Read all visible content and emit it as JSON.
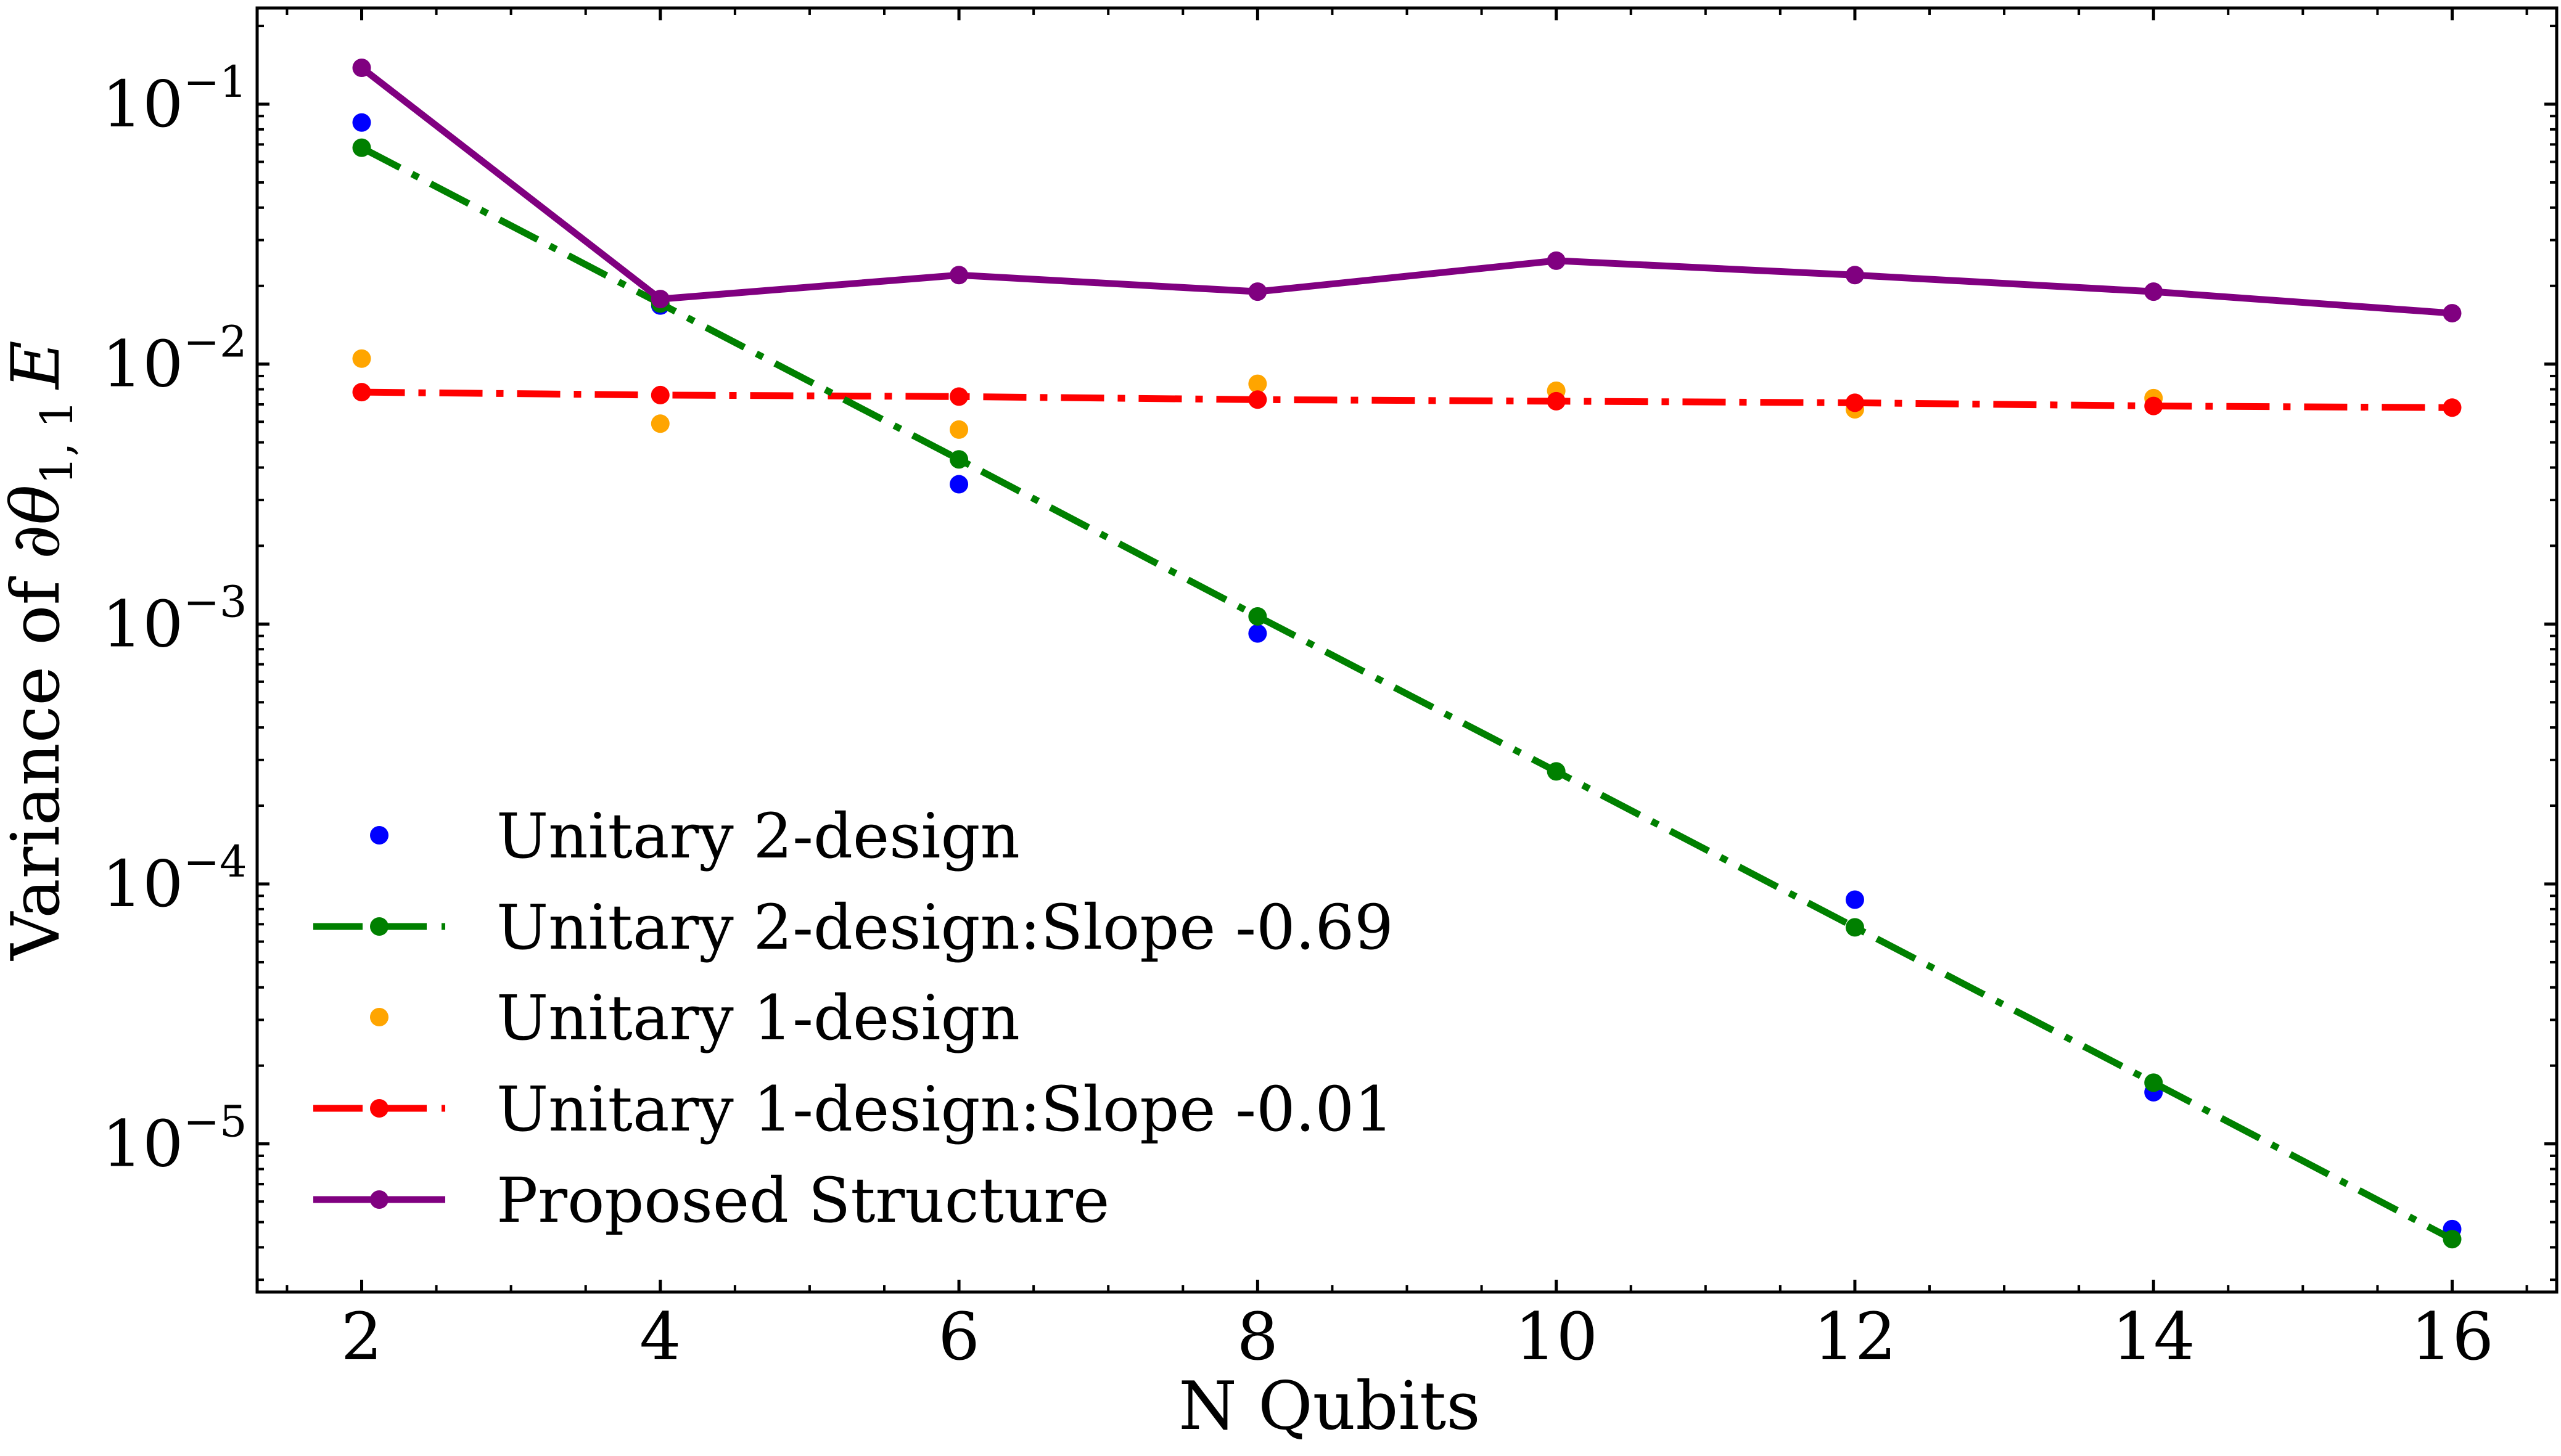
{
  "chart_data": {
    "type": "line",
    "title": "",
    "xlabel": "N Qubits",
    "ylabel_prefix": "Variance of ",
    "ylabel_symbol": "∂θ",
    "ylabel_subscript": "1, 1",
    "ylabel_suffix": "E",
    "yscale": "log",
    "xlim": [
      1.3,
      16.7
    ],
    "ylim_log10": [
      -5.57,
      -0.63
    ],
    "x_ticks": [
      2,
      4,
      6,
      8,
      10,
      12,
      14,
      16
    ],
    "x_tick_labels": [
      "2",
      "4",
      "6",
      "8",
      "10",
      "12",
      "14",
      "16"
    ],
    "y_tick_exponents": [
      -1,
      -2,
      -3,
      -4,
      -5
    ],
    "y_tick_base": "10",
    "y_tick_exponent_labels": [
      "−1",
      "−2",
      "−3",
      "−4",
      "−5"
    ],
    "legend_position": "lower-left",
    "grid": false,
    "series": [
      {
        "name": "Unitary 2-design",
        "style": "markers",
        "color": "#0000ff",
        "x": [
          2,
          4,
          6,
          8,
          12,
          14,
          16
        ],
        "y": [
          0.085,
          0.0168,
          0.00345,
          0.00092,
          8.7e-05,
          1.58e-05,
          4.7e-06
        ]
      },
      {
        "name": "Unitary 2-design:Slope -0.69",
        "style": "dashdot",
        "color": "#008000",
        "x": [
          2,
          4,
          6,
          8,
          10,
          12,
          14,
          16
        ],
        "y": [
          0.068,
          0.0171,
          0.0043,
          0.00107,
          0.000271,
          6.81e-05,
          1.72e-05,
          4.3e-06
        ]
      },
      {
        "name": "Unitary 1-design",
        "style": "markers",
        "color": "#ffa500",
        "x": [
          2,
          4,
          6,
          8,
          10,
          12,
          14
        ],
        "y": [
          0.0105,
          0.0059,
          0.0056,
          0.0084,
          0.0079,
          0.0067,
          0.0074
        ]
      },
      {
        "name": "Unitary 1-design:Slope -0.01",
        "style": "dashdot",
        "color": "#ff0000",
        "x": [
          2,
          4,
          6,
          8,
          10,
          12,
          14,
          16
        ],
        "y": [
          0.0078,
          0.0076,
          0.0075,
          0.0073,
          0.0072,
          0.0071,
          0.0069,
          0.0068
        ]
      },
      {
        "name": "Proposed Structure",
        "style": "solid",
        "color": "#800080",
        "x": [
          2,
          4,
          6,
          8,
          10,
          12,
          14,
          16
        ],
        "y": [
          0.138,
          0.0178,
          0.022,
          0.019,
          0.025,
          0.022,
          0.019,
          0.0157
        ]
      }
    ]
  }
}
